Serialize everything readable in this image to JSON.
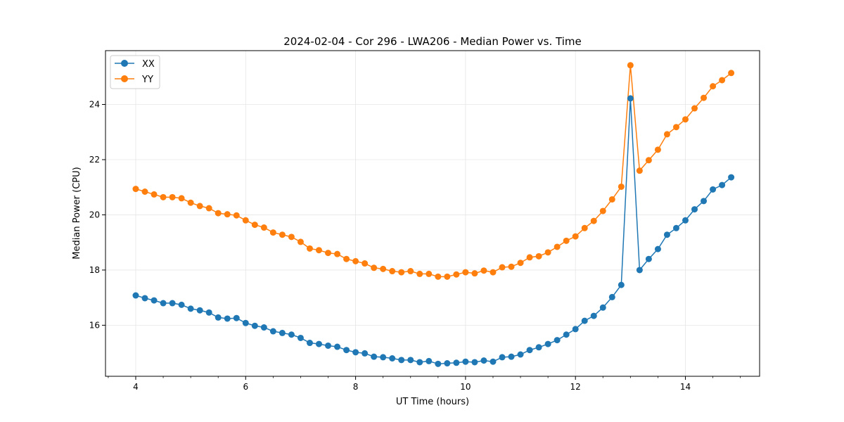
{
  "chart_data": {
    "type": "line",
    "title": "2024-02-04 - Cor 296 - LWA206 - Median Power vs. Time",
    "xlabel": "UT Time (hours)",
    "ylabel": "Median Power (CPU)",
    "xlim": [
      3.45,
      15.35
    ],
    "ylim": [
      14.15,
      25.95
    ],
    "xticks": [
      4,
      6,
      8,
      10,
      12,
      14
    ],
    "yticks": [
      16,
      18,
      20,
      22,
      24
    ],
    "grid": true,
    "legend_position": "top-left",
    "x": [
      4.0,
      4.1667,
      4.3333,
      4.5,
      4.6667,
      4.8333,
      5.0,
      5.1667,
      5.3333,
      5.5,
      5.6667,
      5.8333,
      6.0,
      6.1667,
      6.3333,
      6.5,
      6.6667,
      6.8333,
      7.0,
      7.1667,
      7.3333,
      7.5,
      7.6667,
      7.8333,
      8.0,
      8.1667,
      8.3333,
      8.5,
      8.6667,
      8.8333,
      9.0,
      9.1667,
      9.3333,
      9.5,
      9.6667,
      9.8333,
      10.0,
      10.1667,
      10.3333,
      10.5,
      10.6667,
      10.8333,
      11.0,
      11.1667,
      11.3333,
      11.5,
      11.6667,
      11.8333,
      12.0,
      12.1667,
      12.3333,
      12.5,
      12.6667,
      12.8333,
      13.0,
      13.1667,
      13.3333,
      13.5,
      13.6667,
      13.8333,
      14.0,
      14.1667,
      14.3333,
      14.5,
      14.6667,
      14.8333
    ],
    "series": [
      {
        "name": "XX",
        "color": "#1f77b4",
        "values": [
          17.08,
          16.98,
          16.9,
          16.8,
          16.8,
          16.74,
          16.6,
          16.54,
          16.46,
          16.28,
          16.24,
          16.26,
          16.08,
          15.98,
          15.92,
          15.78,
          15.72,
          15.66,
          15.54,
          15.36,
          15.32,
          15.26,
          15.22,
          15.1,
          15.02,
          14.98,
          14.86,
          14.84,
          14.8,
          14.74,
          14.74,
          14.66,
          14.7,
          14.6,
          14.62,
          14.64,
          14.68,
          14.66,
          14.72,
          14.68,
          14.84,
          14.86,
          14.94,
          15.1,
          15.2,
          15.32,
          15.46,
          15.66,
          15.86,
          16.16,
          16.34,
          16.64,
          17.02,
          17.46,
          24.22,
          18.0,
          18.4,
          18.76,
          19.28,
          19.52,
          19.8,
          20.2,
          20.5,
          20.92,
          21.08,
          21.36
        ]
      },
      {
        "name": "YY",
        "color": "#ff7f0e",
        "values": [
          20.94,
          20.84,
          20.74,
          20.64,
          20.64,
          20.6,
          20.44,
          20.32,
          20.24,
          20.06,
          20.02,
          19.98,
          19.8,
          19.64,
          19.54,
          19.36,
          19.28,
          19.2,
          19.02,
          18.78,
          18.72,
          18.62,
          18.58,
          18.4,
          18.32,
          18.24,
          18.08,
          18.04,
          17.96,
          17.92,
          17.96,
          17.86,
          17.86,
          17.76,
          17.76,
          17.84,
          17.92,
          17.88,
          17.98,
          17.92,
          18.1,
          18.12,
          18.26,
          18.46,
          18.5,
          18.64,
          18.84,
          19.06,
          19.22,
          19.52,
          19.78,
          20.14,
          20.56,
          21.02,
          25.42,
          21.6,
          21.98,
          22.36,
          22.92,
          23.18,
          23.46,
          23.86,
          24.24,
          24.66,
          24.88,
          25.14
        ]
      }
    ]
  }
}
